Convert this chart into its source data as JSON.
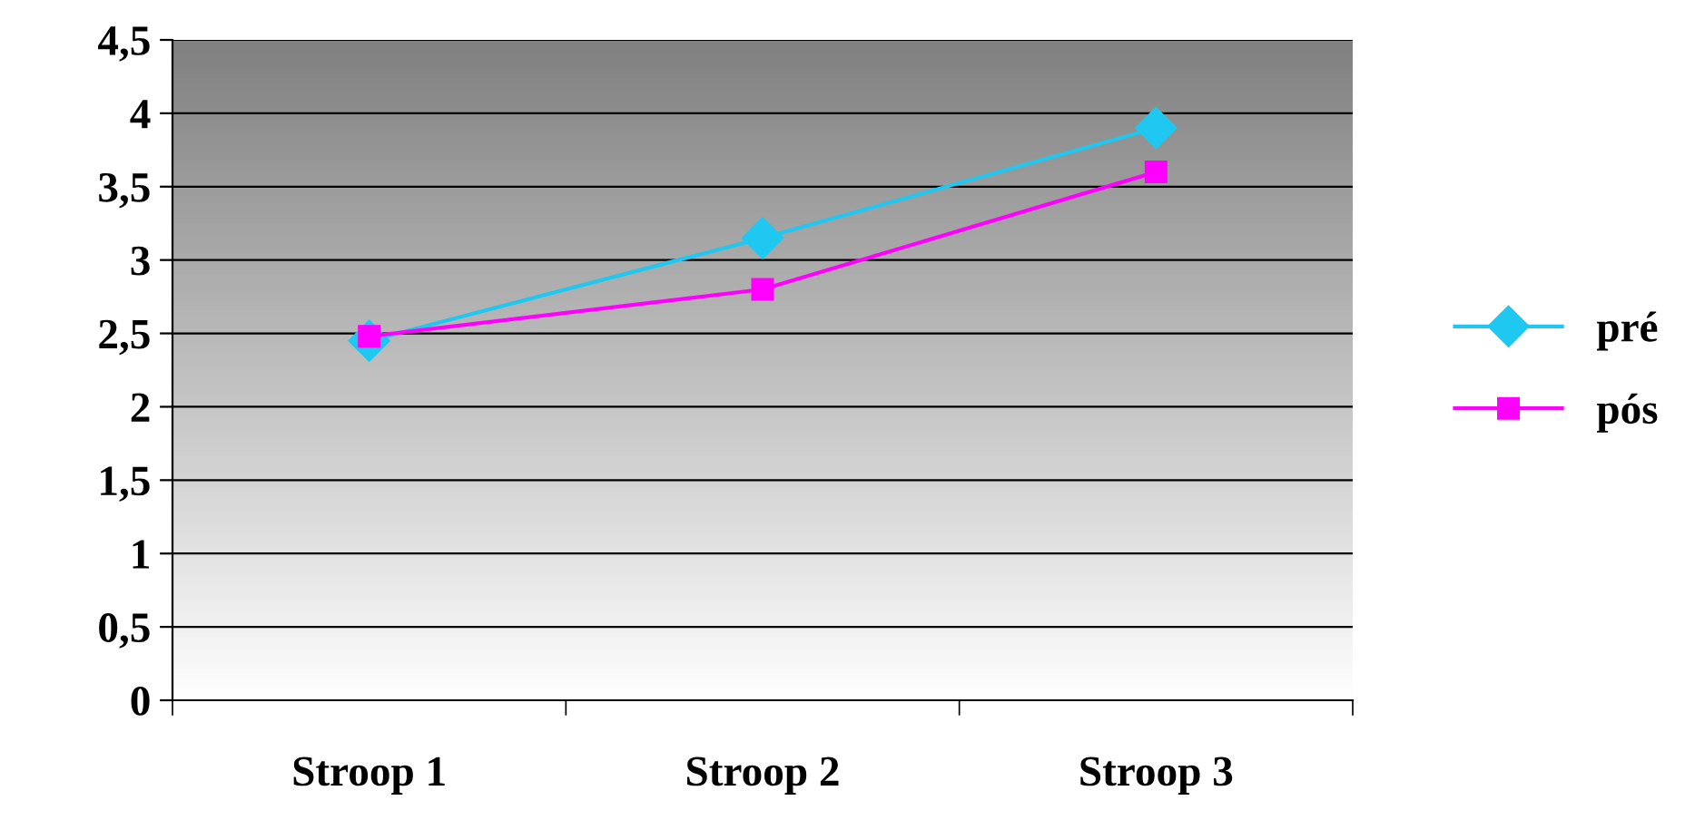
{
  "chart_data": {
    "type": "line",
    "categories": [
      "Stroop 1",
      "Stroop 2",
      "Stroop 3"
    ],
    "series": [
      {
        "name": "pré",
        "color": "#1ec8f0",
        "marker": "diamond",
        "values": [
          2.45,
          3.15,
          3.9
        ]
      },
      {
        "name": "pós",
        "color": "#ff00ff",
        "marker": "square",
        "values": [
          2.48,
          2.8,
          3.6
        ]
      }
    ],
    "ylim": [
      0,
      4.5
    ],
    "yticks": [
      0,
      {
        "value": 0.5,
        "label": "0,5"
      },
      1,
      {
        "value": 1.5,
        "label": "1,5"
      },
      2,
      {
        "value": 2.5,
        "label": "2,5"
      },
      3,
      {
        "value": 3.5,
        "label": "3,5"
      },
      4,
      {
        "value": 4.5,
        "label": "4,5"
      }
    ],
    "grid": "y",
    "legend": "right"
  }
}
